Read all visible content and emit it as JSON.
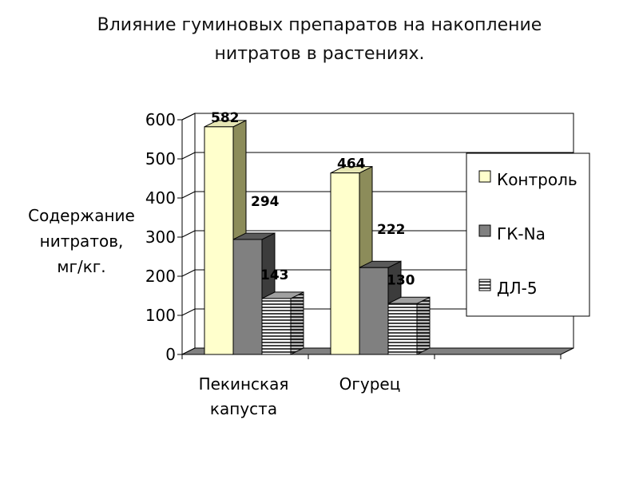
{
  "chart_data": {
    "type": "bar",
    "title_lines": [
      "Влияние  гуминовых препаратов на накопление",
      "нитратов в растениях."
    ],
    "ylabel_lines": [
      "Содержание",
      "нитратов,",
      "мг/кг."
    ],
    "categories": [
      {
        "lines": [
          "Пекинская",
          "капуста"
        ]
      },
      {
        "lines": [
          "Огурец"
        ]
      },
      {
        "lines": []
      }
    ],
    "series": [
      {
        "name": "Контроль",
        "values": [
          582,
          464,
          null
        ],
        "color": "#ffffcc",
        "side": "#8c8c5a",
        "top": "#e6e6b4",
        "pattern": "solid"
      },
      {
        "name": "ГК-Na",
        "values": [
          294,
          222,
          null
        ],
        "color": "#808080",
        "side": "#3c3c3c",
        "top": "#5a5a5a",
        "pattern": "solid"
      },
      {
        "name": "ДЛ-5",
        "values": [
          143,
          130,
          null
        ],
        "color": "#ffffff",
        "side": "#404040",
        "top": "#a0a0a0",
        "pattern": "hstripes"
      }
    ],
    "data_labels": [
      {
        "series": 0,
        "category": 0,
        "text": "582"
      },
      {
        "series": 1,
        "category": 0,
        "text": "294"
      },
      {
        "series": 2,
        "category": 0,
        "text": "143"
      },
      {
        "series": 0,
        "category": 1,
        "text": "464"
      },
      {
        "series": 1,
        "category": 1,
        "text": "222"
      },
      {
        "series": 2,
        "category": 1,
        "text": "130"
      }
    ],
    "yticks": [
      "0",
      "100",
      "200",
      "300",
      "400",
      "500",
      "600"
    ],
    "ylim": [
      0,
      600
    ],
    "grid": true,
    "legend_position": "right",
    "three_d": true
  }
}
